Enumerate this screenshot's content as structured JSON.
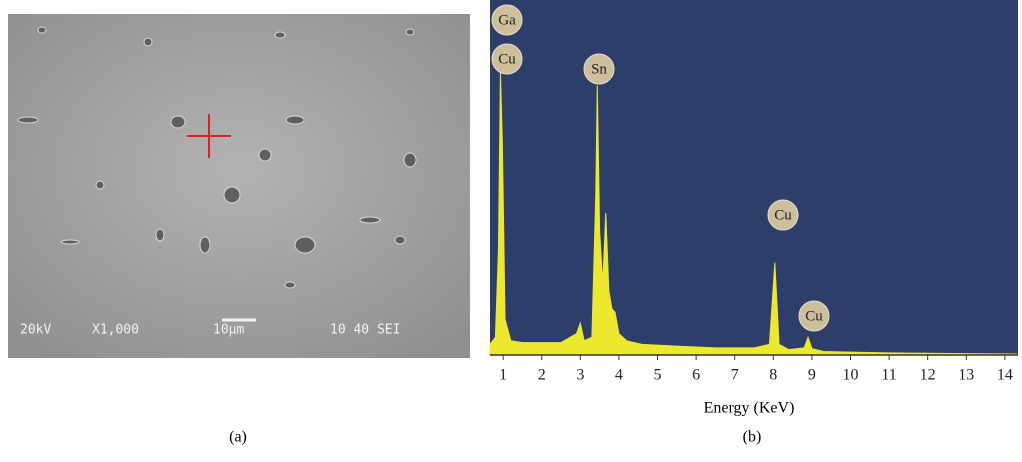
{
  "chart_data": {
    "type": "area",
    "x_label": "Energy (KeV)",
    "caption": "(b)",
    "x": [
      0.66,
      0.8,
      0.88,
      0.93,
      0.98,
      1.05,
      1.2,
      1.5,
      2.0,
      2.5,
      2.9,
      3.0,
      3.1,
      3.3,
      3.4,
      3.44,
      3.5,
      3.58,
      3.66,
      3.74,
      3.82,
      3.9,
      4.0,
      4.2,
      4.6,
      5.5,
      6.5,
      7.5,
      7.9,
      8.04,
      8.15,
      8.4,
      8.8,
      8.9,
      9.0,
      9.3,
      10,
      11,
      12,
      13,
      14.3
    ],
    "values": [
      3,
      5,
      30,
      80,
      60,
      10,
      4,
      3.5,
      3.5,
      3.5,
      6,
      9,
      4,
      5,
      45,
      76,
      35,
      20,
      40,
      18,
      13,
      12,
      6,
      4,
      3,
      2.5,
      2,
      2,
      3,
      26,
      3,
      1.5,
      2,
      5,
      1.8,
      1,
      0.8,
      0.6,
      0.5,
      0.4,
      0.3
    ],
    "color": "#ece82e",
    "background": "#2e3e6a",
    "xlim": [
      0.66,
      14.34
    ],
    "ylim": [
      0,
      100
    ],
    "xticks": [
      1,
      2,
      3,
      4,
      5,
      6,
      7,
      8,
      9,
      10,
      11,
      12,
      13,
      14
    ],
    "annotations": [
      "Ga",
      "Cu",
      "Sn",
      "Cu",
      "Cu"
    ]
  },
  "sem_image": {
    "caption": "(a)",
    "labels": [
      "20kV",
      "X1,000",
      "10μm",
      "10 40 SEI"
    ]
  }
}
